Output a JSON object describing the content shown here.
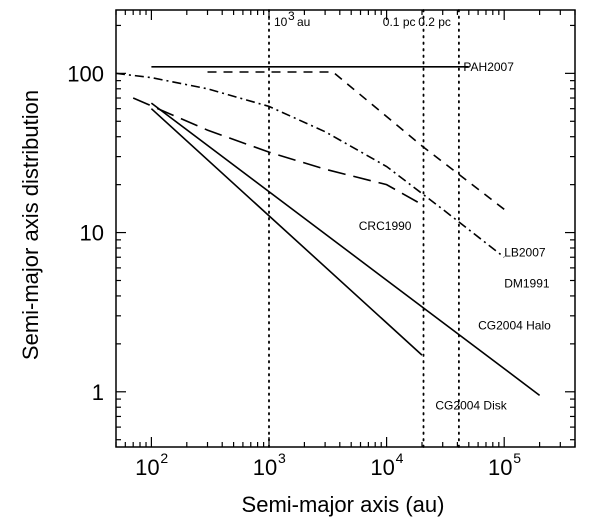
{
  "chart_data": {
    "type": "line",
    "x_scale": "log",
    "y_scale": "log",
    "xlim": [
      50,
      400000
    ],
    "ylim": [
      0.45,
      250
    ],
    "xlabel": "Semi-major axis (au)",
    "ylabel": "Semi-major axis distribution",
    "grid": false,
    "x_ticks": [
      {
        "value": 100,
        "base": "10",
        "exp": "2"
      },
      {
        "value": 1000,
        "base": "10",
        "exp": "3"
      },
      {
        "value": 10000,
        "base": "10",
        "exp": "4"
      },
      {
        "value": 100000,
        "base": "10",
        "exp": "5"
      }
    ],
    "y_ticks": [
      {
        "value": 1,
        "label": "1"
      },
      {
        "value": 10,
        "label": "10"
      },
      {
        "value": 100,
        "label": "100"
      }
    ],
    "vertical_lines": [
      {
        "x": 1000,
        "label_base": "10",
        "label_exp": "3",
        "label_unit": "au"
      },
      {
        "x": 20600,
        "label": "0.1 pc"
      },
      {
        "x": 41200,
        "label": "0.2 pc"
      }
    ],
    "series": [
      {
        "name": "PAH2007",
        "style": "solid",
        "points": [
          [
            100,
            110
          ],
          [
            50000,
            110
          ]
        ]
      },
      {
        "name": "LB2007",
        "style": "dashed",
        "points": [
          [
            300,
            102
          ],
          [
            3500,
            102
          ],
          [
            20000,
            35
          ],
          [
            100000,
            14
          ]
        ]
      },
      {
        "name": "DM1991",
        "style": "dashdot",
        "points": [
          [
            50,
            100
          ],
          [
            100,
            94
          ],
          [
            300,
            80
          ],
          [
            1000,
            62
          ],
          [
            3000,
            43
          ],
          [
            10000,
            26
          ],
          [
            30000,
            14
          ],
          [
            100000,
            7
          ]
        ]
      },
      {
        "name": "CRC1990",
        "style": "longdash",
        "points": [
          [
            70,
            70
          ],
          [
            300,
            44
          ],
          [
            1000,
            32
          ],
          [
            3000,
            25
          ],
          [
            10000,
            20
          ],
          [
            20000,
            15
          ]
        ]
      },
      {
        "name": "CG2004 Halo",
        "style": "solid",
        "points": [
          [
            100,
            65
          ],
          [
            200000,
            0.95
          ]
        ]
      },
      {
        "name": "CG2004 Disk",
        "style": "solid",
        "points": [
          [
            100,
            60
          ],
          [
            20000,
            1.7
          ]
        ]
      }
    ],
    "annotations": [
      {
        "text": "PAH2007",
        "x": 45000,
        "y": 110
      },
      {
        "text": "LB2007",
        "x": 100000,
        "y": 7.5
      },
      {
        "text": "DM1991",
        "x": 100000,
        "y": 4.8
      },
      {
        "text": "CRC1990",
        "x": 5800,
        "y": 11
      },
      {
        "text": "CG2004 Halo",
        "x": 60000,
        "y": 2.6
      },
      {
        "text": "CG2004 Disk",
        "x": 26000,
        "y": 0.82
      }
    ],
    "colors": {
      "line": "#000000",
      "background": "#ffffff"
    }
  }
}
